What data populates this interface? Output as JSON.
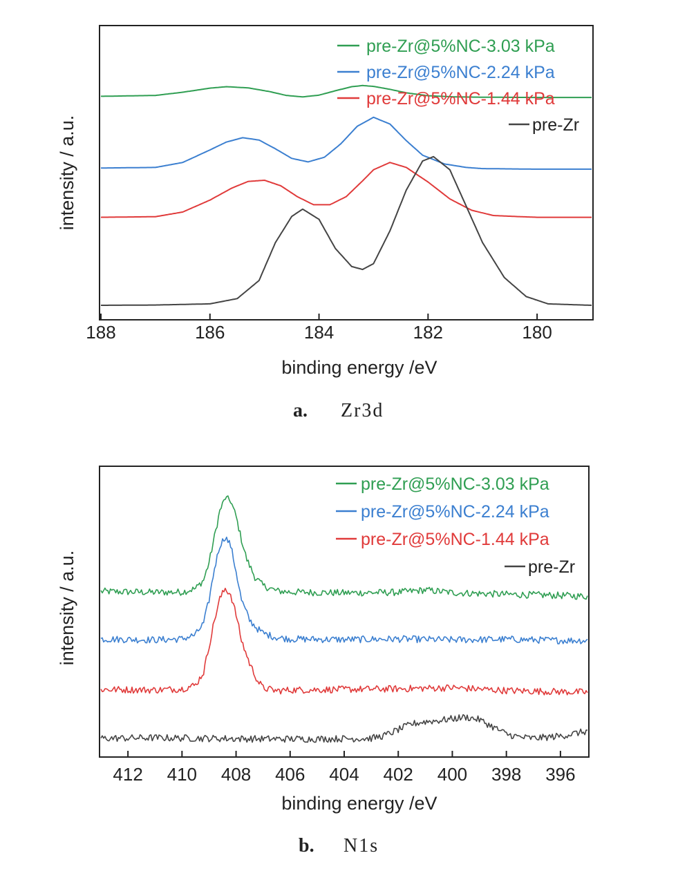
{
  "colors": {
    "series_3_03": "#2f9e52",
    "series_2_24": "#3b7fd0",
    "series_1_44": "#e03a3a",
    "series_pre": "#444444"
  },
  "chart_data": [
    {
      "type": "line",
      "caption_letter": "a.",
      "caption_text": "Zr3d",
      "xlabel": "binding energy /eV",
      "ylabel": "intensity / a.u.",
      "xlim": [
        188,
        179
      ],
      "x_reversed": true,
      "ticks": [
        "188",
        "186",
        "184",
        "182",
        "180"
      ],
      "tick_values": [
        188,
        186,
        184,
        182,
        180
      ],
      "legend_position": "top-right",
      "grid": false,
      "series": [
        {
          "name": "pre-Zr@5%NC-3.03 kPa",
          "color_key": "series_3_03",
          "x": [
            188,
            187,
            186.5,
            186,
            185.7,
            185.3,
            184.9,
            184.6,
            184.3,
            184,
            183.7,
            183.4,
            183.2,
            183,
            182.7,
            182.4,
            182,
            181.5,
            181,
            180,
            179
          ],
          "y": [
            0.762,
            0.765,
            0.776,
            0.79,
            0.795,
            0.791,
            0.778,
            0.765,
            0.76,
            0.766,
            0.781,
            0.795,
            0.799,
            0.796,
            0.786,
            0.774,
            0.764,
            0.76,
            0.759,
            0.758,
            0.758
          ]
        },
        {
          "name": "pre-Zr@5%NC-2.24 kPa",
          "color_key": "series_2_24",
          "x": [
            188,
            187,
            186.5,
            186,
            185.7,
            185.4,
            185.1,
            184.8,
            184.5,
            184.2,
            183.9,
            183.6,
            183.3,
            183,
            182.7,
            182.4,
            182.1,
            181.7,
            181.3,
            181,
            180,
            179
          ],
          "y": [
            0.516,
            0.518,
            0.535,
            0.578,
            0.605,
            0.62,
            0.612,
            0.582,
            0.549,
            0.537,
            0.553,
            0.599,
            0.659,
            0.69,
            0.667,
            0.61,
            0.56,
            0.53,
            0.518,
            0.514,
            0.512,
            0.512
          ]
        },
        {
          "name": "pre-Zr@5%NC-1.44 kPa",
          "color_key": "series_1_44",
          "x": [
            188,
            187,
            186.5,
            186,
            185.6,
            185.3,
            185,
            184.7,
            184.4,
            184.1,
            183.8,
            183.5,
            183.2,
            183,
            182.7,
            182.4,
            182,
            181.6,
            181.2,
            180.8,
            180.3,
            180,
            179
          ],
          "y": [
            0.347,
            0.349,
            0.365,
            0.406,
            0.447,
            0.47,
            0.474,
            0.455,
            0.418,
            0.39,
            0.39,
            0.418,
            0.472,
            0.51,
            0.535,
            0.518,
            0.468,
            0.41,
            0.371,
            0.353,
            0.349,
            0.347,
            0.347
          ]
        },
        {
          "name": "pre-Zr",
          "color_key": "series_pre",
          "x": [
            188,
            187,
            186,
            185.5,
            185.1,
            184.8,
            184.5,
            184.3,
            184,
            183.7,
            183.4,
            183.2,
            183,
            182.7,
            182.4,
            182.1,
            181.9,
            181.6,
            181.3,
            181,
            180.6,
            180.2,
            179.8,
            179
          ],
          "y": [
            0.045,
            0.046,
            0.05,
            0.068,
            0.13,
            0.26,
            0.35,
            0.375,
            0.34,
            0.24,
            0.178,
            0.168,
            0.188,
            0.3,
            0.44,
            0.54,
            0.555,
            0.51,
            0.385,
            0.26,
            0.14,
            0.075,
            0.05,
            0.045
          ]
        }
      ]
    },
    {
      "type": "line",
      "caption_letter": "b.",
      "caption_text": "N1s",
      "xlabel": "binding energy /eV",
      "ylabel": "intensity / a.u.",
      "xlim": [
        413,
        395
      ],
      "x_reversed": true,
      "ticks": [
        "412",
        "410",
        "408",
        "406",
        "404",
        "402",
        "400",
        "398",
        "396"
      ],
      "tick_values": [
        412,
        410,
        408,
        406,
        404,
        402,
        400,
        398,
        396
      ],
      "legend_position": "top-right",
      "grid": false,
      "series": [
        {
          "name": "pre-Zr@5%NC-3.03 kPa",
          "color_key": "series_3_03",
          "x": [
            413,
            411,
            410,
            409.5,
            409.2,
            409,
            408.8,
            408.6,
            408.4,
            408.2,
            408,
            407.8,
            407.6,
            407.3,
            407,
            406.5,
            406,
            404,
            402,
            401,
            400,
            398,
            396,
            395
          ],
          "y": [
            0.57,
            0.567,
            0.568,
            0.58,
            0.61,
            0.67,
            0.76,
            0.85,
            0.895,
            0.885,
            0.83,
            0.75,
            0.68,
            0.62,
            0.59,
            0.572,
            0.568,
            0.565,
            0.567,
            0.575,
            0.566,
            0.56,
            0.556,
            0.553
          ]
        },
        {
          "name": "pre-Zr@5%NC-2.24 kPa",
          "color_key": "series_2_24",
          "x": [
            413,
            411,
            410,
            409.5,
            409.2,
            409,
            408.8,
            408.6,
            408.4,
            408.2,
            408,
            407.8,
            407.5,
            407.2,
            407,
            406.5,
            406,
            404,
            402,
            400,
            398,
            396,
            395
          ],
          "y": [
            0.405,
            0.402,
            0.405,
            0.42,
            0.46,
            0.54,
            0.65,
            0.73,
            0.76,
            0.73,
            0.64,
            0.54,
            0.47,
            0.44,
            0.425,
            0.41,
            0.405,
            0.403,
            0.405,
            0.402,
            0.404,
            0.4,
            0.4
          ]
        },
        {
          "name": "pre-Zr@5%NC-1.44 kPa",
          "color_key": "series_1_44",
          "x": [
            413,
            411,
            410,
            409.5,
            409.2,
            409,
            408.8,
            408.6,
            408.4,
            408.2,
            408,
            407.8,
            407.5,
            407.2,
            407,
            406.5,
            406,
            404,
            402,
            400,
            398,
            396,
            395
          ],
          "y": [
            0.23,
            0.228,
            0.232,
            0.245,
            0.29,
            0.38,
            0.47,
            0.545,
            0.58,
            0.56,
            0.49,
            0.4,
            0.32,
            0.26,
            0.235,
            0.225,
            0.228,
            0.23,
            0.232,
            0.236,
            0.226,
            0.222,
            0.22
          ]
        },
        {
          "name": "pre-Zr",
          "color_key": "series_pre",
          "x": [
            413,
            411,
            409,
            407,
            405,
            403,
            402.5,
            402,
            401.5,
            401,
            400.5,
            400,
            399.5,
            399,
            398.5,
            398,
            397.5,
            397,
            396,
            395
          ],
          "y": [
            0.06,
            0.062,
            0.06,
            0.058,
            0.058,
            0.06,
            0.07,
            0.09,
            0.11,
            0.118,
            0.122,
            0.128,
            0.134,
            0.125,
            0.1,
            0.075,
            0.064,
            0.06,
            0.068,
            0.085
          ]
        }
      ]
    }
  ]
}
